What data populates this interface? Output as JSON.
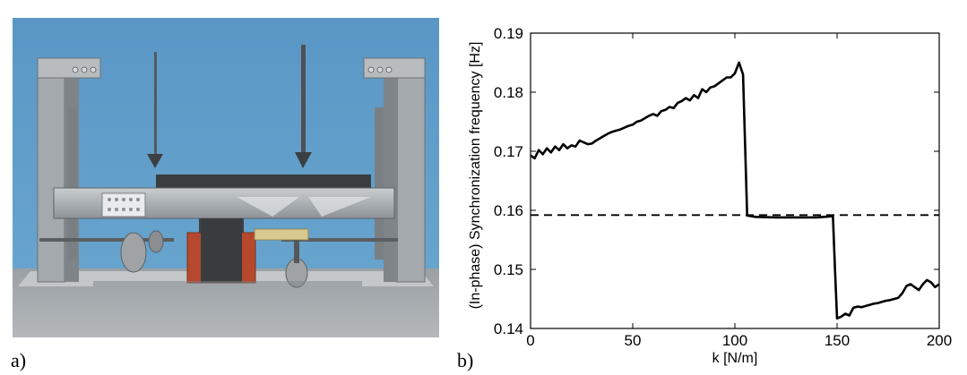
{
  "panel_labels": {
    "a": "a)",
    "b": "b)"
  },
  "photo": {
    "description_icon": "experimental-rig-photo"
  },
  "chart_data": {
    "type": "line",
    "xlabel": "k [N/m]",
    "ylabel": "(In-phase) Synchronization frequency [Hz]",
    "xlim": [
      0,
      200
    ],
    "ylim": [
      0.14,
      0.19
    ],
    "xticks": [
      0,
      50,
      100,
      150,
      200
    ],
    "yticks": [
      0.14,
      0.15,
      0.16,
      0.17,
      0.18,
      0.19
    ],
    "xtick_labels": [
      "0",
      "50",
      "100",
      "150",
      "200"
    ],
    "ytick_labels": [
      "0.14",
      "0.15",
      "0.16",
      "0.17",
      "0.18",
      "0.19"
    ],
    "grid": false,
    "series": [
      {
        "style": "solid",
        "color": "#000000",
        "x": [
          0,
          2,
          4,
          6,
          8,
          10,
          12,
          14,
          16,
          18,
          20,
          22,
          24,
          26,
          28,
          30,
          32,
          34,
          36,
          38,
          40,
          42,
          44,
          46,
          48,
          50,
          52,
          54,
          56,
          58,
          60,
          62,
          64,
          66,
          68,
          70,
          72,
          74,
          76,
          78,
          80,
          82,
          84,
          86,
          88,
          90,
          92,
          94,
          96,
          98,
          100,
          102,
          104,
          106,
          110,
          120,
          130,
          140,
          148,
          149,
          150,
          152,
          154,
          156,
          158,
          160,
          162,
          164,
          166,
          168,
          170,
          172,
          174,
          176,
          178,
          180,
          182,
          184,
          186,
          188,
          190,
          192,
          194,
          196,
          198,
          200
        ],
        "y": [
          0.1693,
          0.1688,
          0.1702,
          0.1695,
          0.1705,
          0.1698,
          0.1708,
          0.1702,
          0.1712,
          0.1705,
          0.171,
          0.1708,
          0.1718,
          0.1715,
          0.1712,
          0.1713,
          0.1718,
          0.1722,
          0.1726,
          0.173,
          0.1733,
          0.1735,
          0.1737,
          0.174,
          0.1743,
          0.1745,
          0.175,
          0.1752,
          0.1756,
          0.176,
          0.1763,
          0.176,
          0.1768,
          0.177,
          0.1775,
          0.1773,
          0.1782,
          0.1785,
          0.179,
          0.1786,
          0.1795,
          0.179,
          0.1805,
          0.18,
          0.1808,
          0.181,
          0.1815,
          0.182,
          0.1825,
          0.1825,
          0.1832,
          0.185,
          0.183,
          0.1591,
          0.1589,
          0.1588,
          0.1588,
          0.1588,
          0.159,
          0.15,
          0.1417,
          0.142,
          0.1425,
          0.1422,
          0.1435,
          0.1437,
          0.1436,
          0.1438,
          0.144,
          0.1442,
          0.1443,
          0.1445,
          0.1447,
          0.1448,
          0.145,
          0.1452,
          0.146,
          0.1472,
          0.1475,
          0.147,
          0.1465,
          0.1475,
          0.1482,
          0.1478,
          0.147,
          0.1475
        ]
      },
      {
        "style": "dashed",
        "color": "#000000",
        "x": [
          0,
          200
        ],
        "y": [
          0.1592,
          0.1592
        ]
      }
    ]
  }
}
